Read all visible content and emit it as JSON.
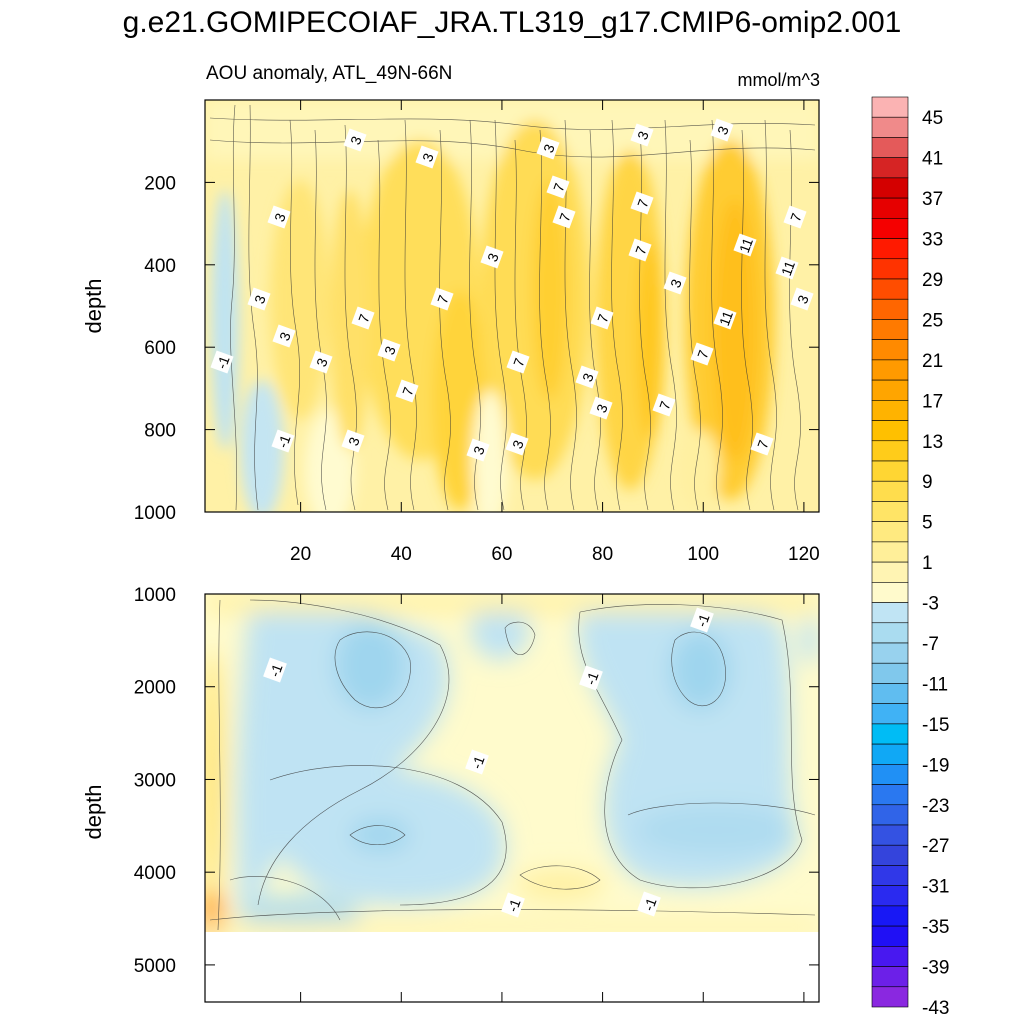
{
  "chart_data": {
    "type": "heatmap",
    "title": "g.e21.GOMIPECOIAF_JRA.TL319_g17.CMIP6-omip2.001",
    "subtitle": "AOU anomaly, ATL_49N-66N",
    "units": "mmol/m^3",
    "panels": [
      {
        "name": "upper",
        "ylabel": "depth",
        "ylim": [
          0,
          1000
        ],
        "yticks": [
          "200",
          "400",
          "600",
          "800",
          "1000"
        ],
        "xlim": [
          1,
          123
        ],
        "xticks": [
          "20",
          "40",
          "60",
          "80",
          "100",
          "120"
        ],
        "contour_labels": [
          "3",
          "3",
          "3",
          "3",
          "3",
          "7",
          "3",
          "7",
          "7",
          "11",
          "7",
          "3",
          "7",
          "3",
          "3",
          "7",
          "11",
          "7",
          "11",
          "3",
          "3",
          "7",
          "7",
          "3",
          "3",
          "7",
          "-1",
          "3",
          "7",
          "3",
          "-1",
          "3",
          "3",
          "3",
          "7",
          "7"
        ],
        "features": [
          {
            "x": 2,
            "depth": 300,
            "value": -3
          },
          {
            "x": 15,
            "depth": 850,
            "value": -3
          },
          {
            "x": 45,
            "depth": 400,
            "value": 9
          },
          {
            "x": 68,
            "depth": 300,
            "value": 9
          },
          {
            "x": 87,
            "depth": 450,
            "value": 11
          },
          {
            "x": 105,
            "depth": 500,
            "value": 13
          }
        ]
      },
      {
        "name": "lower",
        "ylabel": "depth",
        "ylim": [
          1000,
          5400
        ],
        "yticks": [
          "1000",
          "2000",
          "3000",
          "4000",
          "5000"
        ],
        "xlim": [
          1,
          123
        ],
        "contour_labels": [
          "-1",
          "-1",
          "-1",
          "-1",
          "-1",
          "-1"
        ],
        "features": [
          {
            "x": 35,
            "depth": 1800,
            "value": -7
          },
          {
            "x": 30,
            "depth": 3600,
            "value": -5
          },
          {
            "x": 100,
            "depth": 1800,
            "value": -7
          },
          {
            "x": 100,
            "depth": 3500,
            "value": -5
          },
          {
            "x": 2,
            "depth": 4500,
            "value": 13
          },
          {
            "x": 10,
            "depth": 4400,
            "value": -5
          }
        ]
      }
    ],
    "colorbar": {
      "labels": [
        "45",
        "41",
        "37",
        "33",
        "29",
        "25",
        "21",
        "17",
        "13",
        "9",
        "5",
        "1",
        "-3",
        "-7",
        "-11",
        "-15",
        "-19",
        "-23",
        "-27",
        "-31",
        "-35",
        "-39",
        "-43"
      ],
      "colors": [
        "#fbb3b3",
        "#f08a8a",
        "#e45a5a",
        "#d62424",
        "#d40000",
        "#e60000",
        "#f50000",
        "#ff1a00",
        "#ff3300",
        "#ff4d00",
        "#ff6600",
        "#ff7a00",
        "#ff8a00",
        "#ff9a00",
        "#ffa500",
        "#ffb300",
        "#ffc000",
        "#ffcc1a",
        "#ffd633",
        "#ffdd4d",
        "#ffe466",
        "#ffea80",
        "#ffef99",
        "#fff4b3",
        "#fffacc",
        "#c0e4f4",
        "#aadcf0",
        "#98d2ee",
        "#80c8ec",
        "#60bdf0",
        "#40b2f5",
        "#00bcf5",
        "#10a8f5",
        "#2090f5",
        "#2a78f0",
        "#3064e8",
        "#3452e2",
        "#3444dc",
        "#3038e8",
        "#2a2af0",
        "#1818f5",
        "#2010f5",
        "#4818f0",
        "#6c20e8",
        "#8a28e0"
      ]
    }
  }
}
